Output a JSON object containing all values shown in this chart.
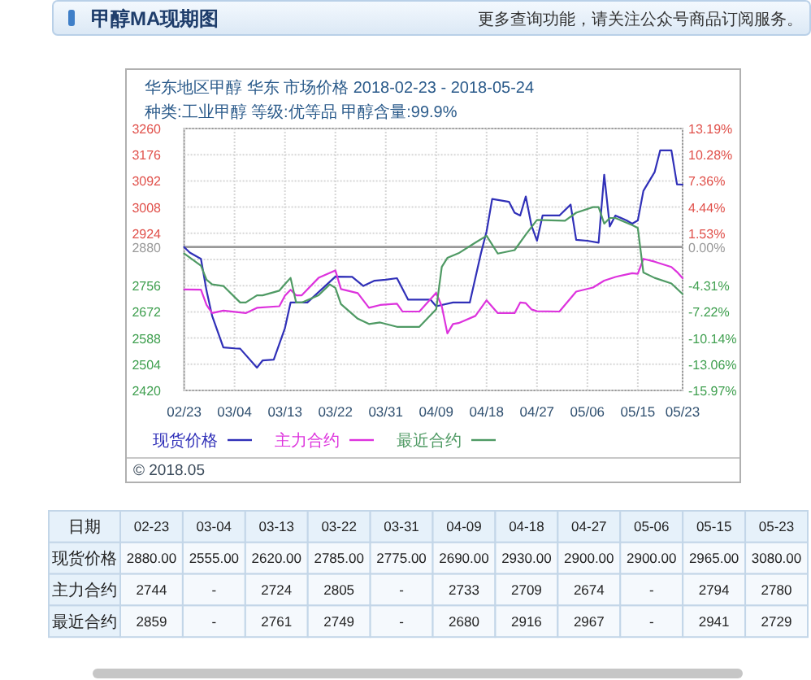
{
  "chart_data": [
    {
      "type": "line",
      "title": "甲醇MA现期图",
      "subtitle": "华东地区甲醇 华东 市场价格 2018-02-23 - 2018-05-24\n种类:工业甲醇 等级:优等品 甲醇含量:99.9%",
      "annotations": [
        "更多查询功能，请关注公众号商品订阅服务。",
        "© 2018.05"
      ],
      "xlim": [
        "--02-23",
        "--05-23"
      ],
      "xticks": [
        {
          "value": "--02-23",
          "label": "02/23"
        },
        {
          "value": "--03-04",
          "label": "03/04"
        },
        {
          "value": "--03-13",
          "label": "03/13"
        },
        {
          "value": "--03-22",
          "label": "03/22"
        },
        {
          "value": "--03-31",
          "label": "03/31"
        },
        {
          "value": "--04-09",
          "label": "04/09"
        },
        {
          "value": "--04-18",
          "label": "04/18"
        },
        {
          "value": "--04-27",
          "label": "04/27"
        },
        {
          "value": "--05-06",
          "label": "05/06"
        },
        {
          "value": "--05-15",
          "label": "05/15"
        },
        {
          "value": "--05-23",
          "label": "05/23"
        }
      ],
      "ylim": [
        2420,
        3260
      ],
      "yticks": [
        2420,
        2504,
        2588,
        2672,
        2756,
        {
          "value": 2840,
          "label": null
        },
        2880,
        2924,
        3008,
        3092,
        3176,
        3260
      ],
      "y2lim": [
        -15.97,
        13.19
      ],
      "y2ticks": [
        {
          "value": -15.97,
          "label": "-15.97%"
        },
        {
          "value": -13.06,
          "label": "-13.06%"
        },
        {
          "value": -10.14,
          "label": "-10.14%"
        },
        {
          "value": -7.22,
          "label": "-7.22%"
        },
        {
          "value": -4.31,
          "label": "-4.31%"
        },
        {
          "value": 0,
          "label": "0.00%"
        },
        {
          "value": 1.53,
          "label": "1.53%"
        },
        {
          "value": 4.44,
          "label": "4.44%"
        },
        {
          "value": 7.36,
          "label": "7.36%"
        },
        {
          "value": 10.28,
          "label": "10.28%"
        },
        {
          "value": 13.19,
          "label": "13.19%"
        }
      ],
      "ref_lines": [
        {
          "axis": "y",
          "value": 2880,
          "color": "#999999"
        }
      ],
      "grid": true,
      "legend": "bottom",
      "series": [
        {
          "name": "现货价格",
          "color": "#3030b8",
          "x": [
            "--02-23",
            "--02-24",
            "--02-26",
            "--02-27",
            "--02-28",
            "--03-02",
            "--03-04",
            "--03-05",
            "--03-08",
            "--03-09",
            "--03-11",
            "--03-13",
            "--03-14",
            "--03-17",
            "--03-22",
            "--03-25",
            "--03-27",
            "--03-29",
            "--03-31",
            "--04-02",
            "--04-04",
            "--04-08",
            "--04-09",
            "--04-12",
            "--04-15",
            "--04-17",
            "--04-18",
            "--04-19",
            "--04-22",
            "--04-23",
            "--04-24",
            "--04-25",
            "--04-26",
            "--04-27",
            "--04-28",
            "--05-01",
            "--05-03",
            "--05-04",
            "--05-06",
            "--05-08",
            "--05-09",
            "--05-10",
            "--05-11",
            "--05-13",
            "--05-14",
            "--05-15",
            "--05-16",
            "--05-18",
            "--05-19",
            "--05-21",
            "--05-22",
            "--05-23"
          ],
          "values": [
            2880,
            2862,
            2842,
            2740,
            2659,
            2558,
            2555,
            2554,
            2493,
            2516,
            2519,
            2620,
            2702,
            2702,
            2785,
            2784,
            2755,
            2772,
            2775,
            2780,
            2711,
            2711,
            2690,
            2702,
            2702,
            2860,
            2930,
            3034,
            3025,
            2990,
            2981,
            3042,
            2950,
            2900,
            2981,
            2981,
            3016,
            2903,
            2900,
            2894,
            3112,
            2946,
            2981,
            2965,
            2955,
            2965,
            3060,
            3120,
            3190,
            3190,
            3081,
            3080
          ]
        },
        {
          "name": "主力合约",
          "color": "#dd33dd",
          "x": [
            "--02-23",
            "--02-26",
            "--02-27",
            "--02-28",
            "--03-02",
            "--03-06",
            "--03-08",
            "--03-12",
            "--03-13",
            "--03-14",
            "--03-15",
            "--03-16",
            "--03-19",
            "--03-22",
            "--03-23",
            "--03-26",
            "--03-28",
            "--03-30",
            "--04-02",
            "--04-03",
            "--04-06",
            "--04-09",
            "--04-10",
            "--04-11",
            "--04-12",
            "--04-13",
            "--04-16",
            "--04-18",
            "--04-20",
            "--04-23",
            "--04-24",
            "--04-25",
            "--04-26",
            "--04-27",
            "--05-01",
            "--05-04",
            "--05-07",
            "--05-09",
            "--05-11",
            "--05-14",
            "--05-15",
            "--05-16",
            "--05-18",
            "--05-21",
            "--05-22",
            "--05-23"
          ],
          "values": [
            2744,
            2743,
            2694,
            2668,
            2676,
            2668,
            2685,
            2690,
            2724,
            2743,
            2725,
            2725,
            2781,
            2805,
            2745,
            2732,
            2685,
            2694,
            2698,
            2673,
            2673,
            2733,
            2690,
            2603,
            2633,
            2636,
            2659,
            2709,
            2668,
            2668,
            2702,
            2700,
            2680,
            2674,
            2673,
            2737,
            2750,
            2772,
            2784,
            2796,
            2794,
            2842,
            2833,
            2816,
            2800,
            2780
          ]
        },
        {
          "name": "最近合约",
          "color": "#4f9a64",
          "x": [
            "--02-23",
            "--02-26",
            "--02-27",
            "--02-28",
            "--03-02",
            "--03-05",
            "--03-06",
            "--03-08",
            "--03-09",
            "--03-12",
            "--03-13",
            "--03-14",
            "--03-15",
            "--03-16",
            "--03-19",
            "--03-21",
            "--03-22",
            "--03-23",
            "--03-26",
            "--03-28",
            "--03-30",
            "--04-02",
            "--04-06",
            "--04-09",
            "--04-10",
            "--04-11",
            "--04-13",
            "--04-16",
            "--04-18",
            "--04-20",
            "--04-23",
            "--04-25",
            "--04-27",
            "--05-02",
            "--05-04",
            "--05-07",
            "--05-08",
            "--05-09",
            "--05-10",
            "--05-11",
            "--05-14",
            "--05-15",
            "--05-16",
            "--05-18",
            "--05-21",
            "--05-23"
          ],
          "values": [
            2859,
            2820,
            2775,
            2760,
            2755,
            2702,
            2702,
            2725,
            2725,
            2740,
            2761,
            2781,
            2702,
            2702,
            2725,
            2760,
            2749,
            2697,
            2650,
            2633,
            2638,
            2624,
            2624,
            2680,
            2816,
            2845,
            2860,
            2894,
            2916,
            2859,
            2870,
            2920,
            2967,
            2964,
            2990,
            3008,
            3008,
            2955,
            2973,
            2973,
            2950,
            2941,
            2798,
            2781,
            2763,
            2729
          ]
        }
      ]
    },
    {
      "type": "other",
      "annotations": [
        "日期"
      ],
      "categories": [
        "02-23",
        "03-04",
        "03-13",
        "03-22",
        "03-31",
        "04-09",
        "04-18",
        "04-27",
        "05-06",
        "05-15",
        "05-23"
      ],
      "y_categories": [
        "现货价格",
        "主力合约",
        "最近合约"
      ],
      "cell_labels": [
        [
          "2880.00",
          "2555.00",
          "2620.00",
          "2785.00",
          "2775.00",
          "2690.00",
          "2930.00",
          "2900.00",
          "2900.00",
          "2965.00",
          "3080.00"
        ],
        [
          "2744",
          "-",
          "2724",
          "2805",
          "-",
          "2733",
          "2709",
          "2674",
          "-",
          "2794",
          "2780"
        ],
        [
          "2859",
          "-",
          "2761",
          "2749",
          "-",
          "2680",
          "2916",
          "2967",
          "-",
          "2941",
          "2729"
        ]
      ]
    }
  ]
}
